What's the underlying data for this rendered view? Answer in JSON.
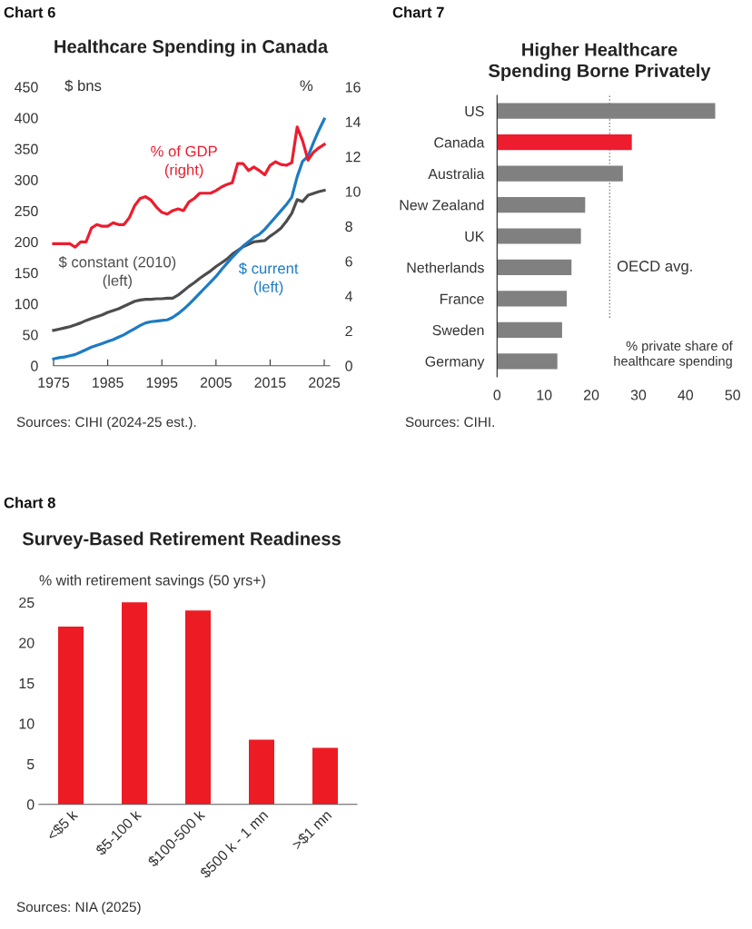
{
  "chart_data": [
    {
      "type": "line",
      "title": "Healthcare Spending in Canada",
      "ylabel": "$ bns",
      "y2label": "%",
      "annotations": [
        "Chart 6",
        "Sources: CIHI (2024-25 est.)."
      ],
      "x": [
        1975,
        1976,
        1977,
        1978,
        1979,
        1980,
        1981,
        1982,
        1983,
        1984,
        1985,
        1986,
        1987,
        1988,
        1989,
        1990,
        1991,
        1992,
        1993,
        1994,
        1995,
        1996,
        1997,
        1998,
        1999,
        2000,
        2001,
        2002,
        2003,
        2004,
        2005,
        2006,
        2007,
        2008,
        2009,
        2010,
        2011,
        2012,
        2013,
        2014,
        2015,
        2016,
        2017,
        2018,
        2019,
        2020,
        2021,
        2022,
        2023,
        2024,
        2025
      ],
      "series": [
        {
          "name": "% of GDP\n(right)",
          "color": "#ed1c2e",
          "axis": "y2",
          "values": [
            7.0,
            7.0,
            7.0,
            7.0,
            6.8,
            7.1,
            7.1,
            7.9,
            8.1,
            8.0,
            8.0,
            8.2,
            8.1,
            8.1,
            8.5,
            9.2,
            9.6,
            9.7,
            9.5,
            9.1,
            8.8,
            8.7,
            8.9,
            9.0,
            8.9,
            9.4,
            9.6,
            9.9,
            9.9,
            9.9,
            10.05,
            10.25,
            10.4,
            10.5,
            11.6,
            11.6,
            11.2,
            11.4,
            11.2,
            10.95,
            11.5,
            11.7,
            11.55,
            11.5,
            11.65,
            13.7,
            12.9,
            11.8,
            12.25,
            12.5,
            12.7
          ]
        },
        {
          "name": "$ constant (2010)\n(left)",
          "color": "#4d4d4f",
          "values": [
            57,
            59,
            61,
            63,
            66,
            69,
            73,
            76,
            79,
            82,
            86,
            89,
            92,
            96,
            100,
            104,
            106,
            107,
            107,
            108,
            108,
            109,
            109,
            114,
            121,
            128,
            134,
            141,
            147,
            153,
            160,
            166,
            172,
            180,
            186,
            192,
            196,
            200,
            201,
            202,
            209,
            215,
            222,
            233,
            246,
            268,
            265,
            275,
            278,
            281,
            283
          ]
        },
        {
          "name": "$ current\n(left)",
          "color": "#1d7bc4",
          "values": [
            11,
            13,
            14,
            16,
            18,
            22,
            26,
            30,
            33,
            36,
            39,
            42,
            46,
            50,
            55,
            60,
            65,
            69,
            71,
            72,
            73,
            74,
            78,
            84,
            91,
            99,
            108,
            117,
            126,
            135,
            144,
            155,
            165,
            175,
            184,
            193,
            200,
            207,
            212,
            220,
            230,
            240,
            250,
            260,
            272,
            305,
            330,
            338,
            360,
            380,
            398
          ]
        }
      ],
      "xlim": [
        1975,
        2026
      ],
      "xticks": [
        1975,
        1985,
        1995,
        2005,
        2015,
        2025
      ],
      "ylim": [
        0,
        450
      ],
      "yticks": [
        0,
        50,
        100,
        150,
        200,
        250,
        300,
        350,
        400,
        450
      ],
      "y2lim": [
        0,
        16
      ],
      "y2ticks": [
        0,
        2,
        4,
        6,
        8,
        10,
        12,
        14,
        16
      ],
      "grid": false,
      "legend": false,
      "line_style": "solid",
      "marker": "none"
    },
    {
      "type": "bar",
      "orientation": "horizontal",
      "title": "Higher Healthcare\nSpending Borne Privately",
      "annotations": [
        "Chart 7",
        "% private share of\nhealthcare spending",
        "Sources: CIHI."
      ],
      "categories": [
        "US",
        "Canada",
        "Australia",
        "New Zealand",
        "UK",
        "Netherlands",
        "France",
        "Sweden",
        "Germany"
      ],
      "values": [
        46.3,
        28.6,
        26.7,
        18.7,
        17.8,
        15.8,
        14.8,
        13.8,
        12.8
      ],
      "colors": [
        "#808080",
        "#ed1c2e",
        "#808080",
        "#808080",
        "#808080",
        "#808080",
        "#808080",
        "#808080",
        "#808080"
      ],
      "xlim": [
        0,
        50
      ],
      "xticks": [
        0,
        10,
        20,
        30,
        40,
        50
      ],
      "ref_lines": [
        {
          "axis": "x",
          "value": 23.9,
          "label": "OECD avg.",
          "color": "#808080",
          "line_style": "dotted"
        }
      ],
      "grid": false
    },
    {
      "type": "bar",
      "title": "Survey-Based Retirement Readiness",
      "ylabel": "% with retirement savings (50 yrs+)",
      "annotations": [
        "Chart 8",
        "Sources: NIA (2025)"
      ],
      "categories": [
        "<$5 k",
        "$5-100 k",
        "$100-500 k",
        "$500 k - 1 mn",
        ">$1 mn"
      ],
      "values": [
        22,
        25,
        24,
        8,
        7
      ],
      "color": "#ed1c24",
      "ylim": [
        0,
        25
      ],
      "yticks": [
        0,
        5,
        10,
        15,
        20,
        25
      ],
      "grid": false
    }
  ]
}
